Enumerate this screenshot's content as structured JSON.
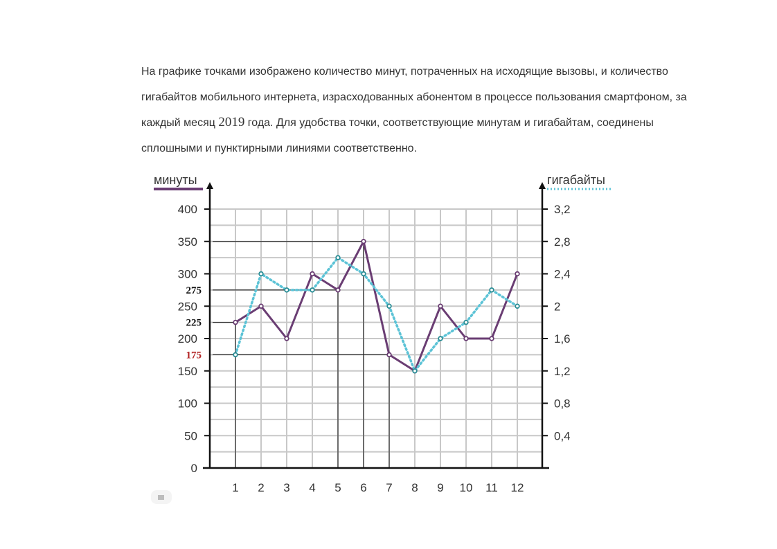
{
  "description": {
    "before_year": "На графике точками изображено количество минут, потраченных на исходящие вызовы, и количество гигабайтов мобильного интернета, израсходованных абонентом в процессе пользования смартфоном, за каждый месяц ",
    "year": "2019",
    "after_year": " года. Для удобства точки, соответствующие минутам и гигабайтам, соединены сплошными и пунктирными линиями соответственно."
  },
  "colors": {
    "minutes": "#6a3d73",
    "gigabytes": "#5cc3d6",
    "grid": "#c8c8c8",
    "axis": "#111111",
    "annotation_black": "#111111",
    "annotation_red": "#b22222"
  },
  "chart_data": {
    "type": "line",
    "x_categories": [
      "1",
      "2",
      "3",
      "4",
      "5",
      "6",
      "7",
      "8",
      "9",
      "10",
      "11",
      "12"
    ],
    "y_left": {
      "label": "минуты",
      "range": [
        0,
        400
      ],
      "ticks": [
        "0",
        "50",
        "100",
        "150",
        "200",
        "250",
        "300",
        "350",
        "400"
      ]
    },
    "y_right": {
      "label": "гигабайты",
      "range": [
        0,
        3.2
      ],
      "ticks": [
        "0,4",
        "0,8",
        "1,2",
        "1,6",
        "2",
        "2,4",
        "2,8",
        "3,2"
      ]
    },
    "grid": true,
    "series": [
      {
        "name": "минуты",
        "axis": "left",
        "style": "solid",
        "values": [
          225,
          250,
          200,
          300,
          275,
          350,
          175,
          150,
          250,
          200,
          200,
          300
        ]
      },
      {
        "name": "гигабайты",
        "axis": "right",
        "style": "dotted",
        "values": [
          1.4,
          2.4,
          2.2,
          2.2,
          2.6,
          2.4,
          2.0,
          1.2,
          1.6,
          1.8,
          2.2,
          2.0
        ]
      }
    ],
    "annotations": [
      {
        "label": "275",
        "y": 275,
        "month_to": 5,
        "color": "black"
      },
      {
        "label": "225",
        "y": 225,
        "month_to": 1,
        "color": "black"
      },
      {
        "label": "175",
        "y": 175,
        "month_to": 7,
        "color": "red"
      }
    ],
    "helper_lines": [
      {
        "y": 350,
        "month_to": 6
      }
    ],
    "vertical_guides": [
      1,
      5,
      6,
      7
    ]
  }
}
